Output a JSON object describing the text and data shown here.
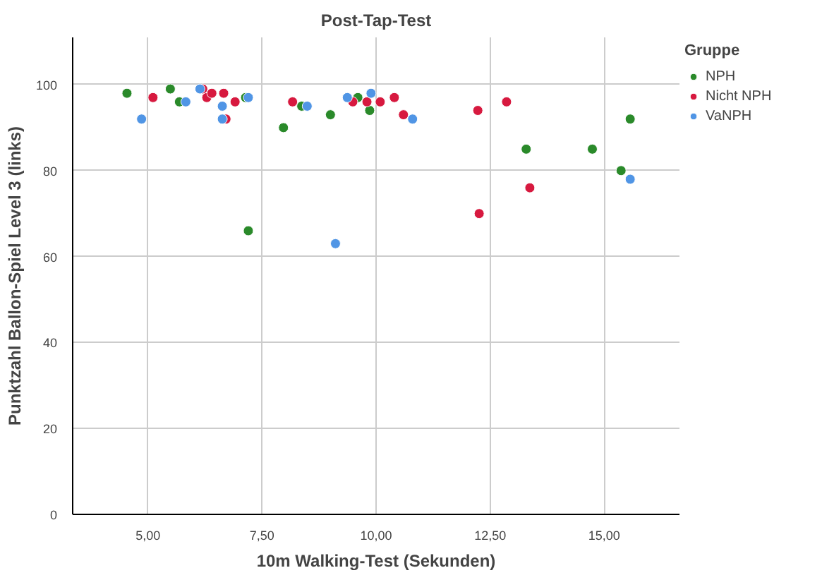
{
  "chart_data": {
    "type": "scatter",
    "title": "Post-Tap-Test",
    "xlabel": "10m Walking-Test (Sekunden)",
    "ylabel": "Punktzahl Ballon-Spiel Level 3 (links)",
    "legend_title": "Gruppe",
    "legend": "right",
    "grid": true,
    "marker": "circle",
    "xlim": [
      3.35,
      16.65
    ],
    "ylim": [
      0,
      111
    ],
    "xticks": [
      {
        "value": 5,
        "label": "5,00"
      },
      {
        "value": 7.5,
        "label": "7,50"
      },
      {
        "value": 10,
        "label": "10,00"
      },
      {
        "value": 12.5,
        "label": "12,50"
      },
      {
        "value": 15,
        "label": "15,00"
      }
    ],
    "yticks": [
      0,
      20,
      40,
      60,
      80,
      100
    ],
    "series": [
      {
        "name": "NPH",
        "color": "#2a8a2a",
        "x": [
          4.54,
          5.49,
          5.69,
          7.2,
          7.97,
          9.0,
          8.37,
          7.14,
          9.6,
          9.86,
          13.29,
          14.74,
          15.37,
          15.57
        ],
        "values": [
          98,
          99,
          96,
          66,
          90,
          93,
          95,
          97,
          97,
          94,
          85,
          85,
          80,
          92
        ]
      },
      {
        "name": "Nicht NPH",
        "color": "#d7193f",
        "x": [
          5.11,
          6.2,
          6.29,
          6.4,
          6.66,
          6.91,
          6.71,
          8.17,
          9.49,
          9.8,
          10.09,
          10.4,
          10.6,
          12.23,
          12.86,
          13.37,
          12.26
        ],
        "values": [
          97,
          99,
          97,
          98,
          98,
          96,
          92,
          96,
          96,
          96,
          96,
          97,
          93,
          94,
          96,
          76,
          70
        ]
      },
      {
        "name": "VaNPH",
        "color": "#5095e5",
        "x": [
          4.86,
          5.83,
          6.14,
          6.63,
          6.63,
          7.2,
          8.49,
          9.11,
          9.37,
          9.89,
          10.8,
          15.57
        ],
        "values": [
          92,
          96,
          99,
          95,
          92,
          97,
          95,
          63,
          97,
          98,
          92,
          78
        ]
      }
    ]
  }
}
